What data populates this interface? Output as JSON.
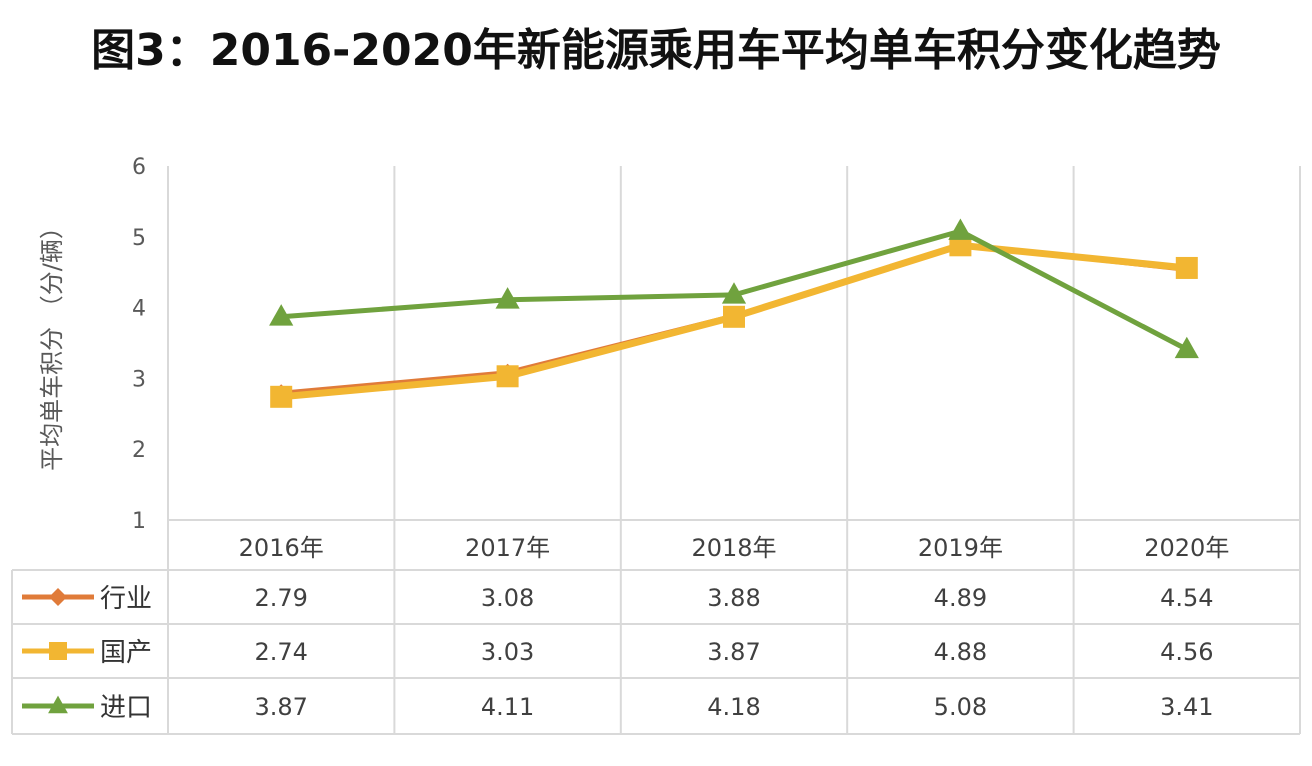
{
  "title": "图3：2016-2020年新能源乘用车平均单车积分变化趋势",
  "chart_data": {
    "type": "line",
    "categories": [
      "2016年",
      "2017年",
      "2018年",
      "2019年",
      "2020年"
    ],
    "ylabel": "平均单车积分 （分/辆）",
    "xlabel": "",
    "ylim": [
      1,
      6
    ],
    "yticks": [
      "1",
      "2",
      "3",
      "4",
      "5",
      "6"
    ],
    "grid": "vertical",
    "legend": "data-table-left",
    "series": [
      {
        "name": "行业",
        "color": "#E07B39",
        "marker": "diamond",
        "values": [
          2.79,
          3.08,
          3.88,
          4.89,
          4.54
        ],
        "labels": [
          "2.79",
          "3.08",
          "3.88",
          "4.89",
          "4.54"
        ]
      },
      {
        "name": "国产",
        "color": "#F2B632",
        "marker": "square",
        "values": [
          2.74,
          3.03,
          3.87,
          4.88,
          4.56
        ],
        "labels": [
          "2.74",
          "3.03",
          "3.87",
          "4.88",
          "4.56"
        ]
      },
      {
        "name": "进口",
        "color": "#70A23E",
        "marker": "triangle",
        "values": [
          3.87,
          4.11,
          4.18,
          5.08,
          3.41
        ],
        "labels": [
          "3.87",
          "4.11",
          "4.18",
          "5.08",
          "3.41"
        ]
      }
    ]
  }
}
